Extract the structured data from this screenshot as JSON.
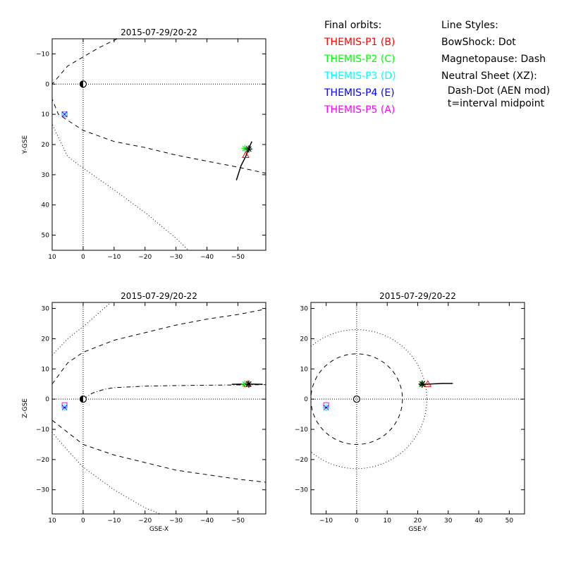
{
  "legend": {
    "orbits_title": "Final orbits:",
    "orbits": [
      {
        "label": "THEMIS-P1 (B)",
        "color": "#ff0000",
        "symbol": "triangle"
      },
      {
        "label": "THEMIS-P2 (C)",
        "color": "#00ff00",
        "symbol": "asterisk"
      },
      {
        "label": "THEMIS-P3 (D)",
        "color": "#00ffff",
        "symbol": "diamond"
      },
      {
        "label": "THEMIS-P4 (E)",
        "color": "#0000ff",
        "symbol": "x"
      },
      {
        "label": "THEMIS-P5 (A)",
        "color": "#ff00ff",
        "symbol": "square"
      }
    ],
    "styles_title": "Line Styles:",
    "styles": [
      "BowShock: Dot",
      "Magnetopause: Dash",
      "Neutral Sheet (XZ):",
      "  Dash-Dot (AEN mod)",
      "  t=interval midpoint"
    ]
  },
  "chart_data": [
    {
      "type": "line",
      "panel": "XY",
      "title": "2015-07-29/20-22",
      "xlabel": "",
      "ylabel": "Y-GSE",
      "xlim": [
        10,
        -59
      ],
      "ylim": [
        55,
        -15
      ],
      "xticks": [
        10,
        0,
        -10,
        -20,
        -30,
        -40,
        -50
      ],
      "yticks": [
        -10,
        0,
        10,
        20,
        30,
        40,
        50
      ],
      "zero_lines": true,
      "curves": [
        {
          "name": "bowshock",
          "style": "dot",
          "points": [
            [
              14.5,
              -15
            ],
            [
              13,
              -7
            ],
            [
              12.5,
              0
            ],
            [
              11.5,
              7
            ],
            [
              10,
              13.3
            ],
            [
              5,
              24
            ],
            [
              0,
              27.8
            ],
            [
              -10,
              35
            ],
            [
              -20,
              42.5
            ],
            [
              -30,
              51
            ],
            [
              -34,
              55
            ]
          ]
        },
        {
          "name": "magnetopause",
          "style": "dash",
          "points": [
            [
              -11,
              -15
            ],
            [
              -5,
              -12
            ],
            [
              5,
              -6
            ],
            [
              10,
              0
            ],
            [
              10,
              5
            ],
            [
              8,
              10
            ],
            [
              0,
              15.3
            ],
            [
              -10,
              19
            ],
            [
              -20,
              21
            ],
            [
              -30,
              23.5
            ],
            [
              -40,
              25.5
            ],
            [
              -50,
              27.5
            ],
            [
              -59,
              29.5
            ]
          ]
        }
      ],
      "orbit_tracks": [
        {
          "points": [
            [
              -49.5,
              31.8
            ],
            [
              -51,
              27
            ],
            [
              -52.5,
              24
            ],
            [
              -53.5,
              21.3
            ],
            [
              -54.5,
              19
            ]
          ]
        }
      ],
      "markers": [
        {
          "x": 0,
          "y": 0,
          "symbol": "earth"
        },
        {
          "x": 6,
          "y": 10,
          "symbol": "square",
          "color": "#ff00ff"
        },
        {
          "x": 6,
          "y": 10,
          "symbol": "x",
          "color": "#0000ff"
        },
        {
          "x": 6,
          "y": 10,
          "symbol": "diamond",
          "color": "#00ffff"
        },
        {
          "x": -52.5,
          "y": 23.5,
          "symbol": "triangle",
          "color": "#ff0000"
        },
        {
          "x": -52.3,
          "y": 21.3,
          "symbol": "asterisk",
          "color": "#00ff00"
        },
        {
          "x": -53.5,
          "y": 21.5,
          "symbol": "asterisk",
          "color": "#000000"
        }
      ]
    },
    {
      "type": "line",
      "panel": "XZ",
      "title": "2015-07-29/20-22",
      "xlabel": "GSE-X",
      "ylabel": "Z-GSE",
      "xlim": [
        10,
        -59
      ],
      "ylim": [
        -38,
        32
      ],
      "xticks": [
        10,
        0,
        -10,
        -20,
        -30,
        -40,
        -50
      ],
      "yticks": [
        30,
        20,
        10,
        0,
        -10,
        -20,
        -30
      ],
      "zero_lines": true,
      "curves": [
        {
          "name": "bowshock-north",
          "style": "dot",
          "points": [
            [
              10,
              14.5
            ],
            [
              5,
              20
            ],
            [
              0,
              24
            ],
            [
              -5,
              28.5
            ],
            [
              -9,
              32
            ]
          ]
        },
        {
          "name": "bowshock-south",
          "style": "dot",
          "points": [
            [
              10,
              -11
            ],
            [
              5,
              -17
            ],
            [
              0,
              -22.5
            ],
            [
              -10,
              -30
            ],
            [
              -20,
              -36
            ],
            [
              -25,
              -38
            ]
          ]
        },
        {
          "name": "magnetopause-north",
          "style": "dash",
          "points": [
            [
              10,
              5
            ],
            [
              5,
              12
            ],
            [
              0,
              15.5
            ],
            [
              -10,
              19.5
            ],
            [
              -20,
              22
            ],
            [
              -30,
              24.5
            ],
            [
              -40,
              26.5
            ],
            [
              -50,
              28
            ],
            [
              -59,
              29.8
            ]
          ]
        },
        {
          "name": "magnetopause-south",
          "style": "dash",
          "points": [
            [
              10,
              -7
            ],
            [
              5,
              -11
            ],
            [
              0,
              -15
            ],
            [
              -10,
              -18.5
            ],
            [
              -20,
              -21
            ],
            [
              -30,
              -23.5
            ],
            [
              -40,
              -25
            ],
            [
              -50,
              -26.5
            ],
            [
              -59,
              -27.5
            ]
          ]
        },
        {
          "name": "neutral-sheet",
          "style": "dashdot",
          "points": [
            [
              0,
              0
            ],
            [
              -3,
              2
            ],
            [
              -7,
              3.3
            ],
            [
              -10,
              3.8
            ],
            [
              -20,
              4.3
            ],
            [
              -30,
              4.5
            ],
            [
              -40,
              4.6
            ],
            [
              -50,
              4.7
            ],
            [
              -59,
              4.8
            ]
          ]
        }
      ],
      "orbit_tracks": [
        {
          "points": [
            [
              -48,
              4.9
            ],
            [
              -53,
              5
            ],
            [
              -58,
              4.9
            ]
          ]
        }
      ],
      "markers": [
        {
          "x": 0,
          "y": 0,
          "symbol": "earth"
        },
        {
          "x": 6,
          "y": -2,
          "symbol": "square",
          "color": "#ff00ff"
        },
        {
          "x": 6,
          "y": -2.8,
          "symbol": "x",
          "color": "#0000ff"
        },
        {
          "x": 6,
          "y": -2.8,
          "symbol": "diamond",
          "color": "#00ffff"
        },
        {
          "x": -53,
          "y": 5,
          "symbol": "triangle",
          "color": "#ff0000"
        },
        {
          "x": -52.3,
          "y": 5,
          "symbol": "asterisk",
          "color": "#00ff00"
        },
        {
          "x": -53.5,
          "y": 5,
          "symbol": "asterisk",
          "color": "#000000"
        }
      ]
    },
    {
      "type": "line",
      "panel": "YZ",
      "title": "2015-07-29/20-22",
      "xlabel": "GSE-Y",
      "ylabel": "",
      "xlim": [
        -15,
        55
      ],
      "ylim": [
        -38,
        32
      ],
      "xticks": [
        -10,
        0,
        10,
        20,
        30,
        40,
        50
      ],
      "yticks": [
        30,
        20,
        10,
        0,
        -10,
        -20,
        -30
      ],
      "zero_lines": true,
      "circles": [
        {
          "name": "bowshock",
          "style": "dot",
          "cx": 0,
          "cy": 0,
          "r": 23
        },
        {
          "name": "magnetopause",
          "style": "dash",
          "cx": 0,
          "cy": 0,
          "r": 15
        }
      ],
      "orbit_tracks": [
        {
          "points": [
            [
              20.5,
              4.8
            ],
            [
              24,
              5
            ],
            [
              28,
              5.2
            ],
            [
              31.5,
              5.2
            ]
          ]
        }
      ],
      "markers": [
        {
          "x": 0,
          "y": 0,
          "symbol": "earth-open"
        },
        {
          "x": -10,
          "y": -2,
          "symbol": "square",
          "color": "#ff00ff"
        },
        {
          "x": -10,
          "y": -2.8,
          "symbol": "x",
          "color": "#0000ff"
        },
        {
          "x": -10,
          "y": -2.8,
          "symbol": "diamond",
          "color": "#00ffff"
        },
        {
          "x": 23.3,
          "y": 5,
          "symbol": "triangle",
          "color": "#ff0000"
        },
        {
          "x": 21.3,
          "y": 5,
          "symbol": "asterisk",
          "color": "#00ff00"
        },
        {
          "x": 21.5,
          "y": 5,
          "symbol": "asterisk",
          "color": "#000000"
        }
      ]
    }
  ]
}
